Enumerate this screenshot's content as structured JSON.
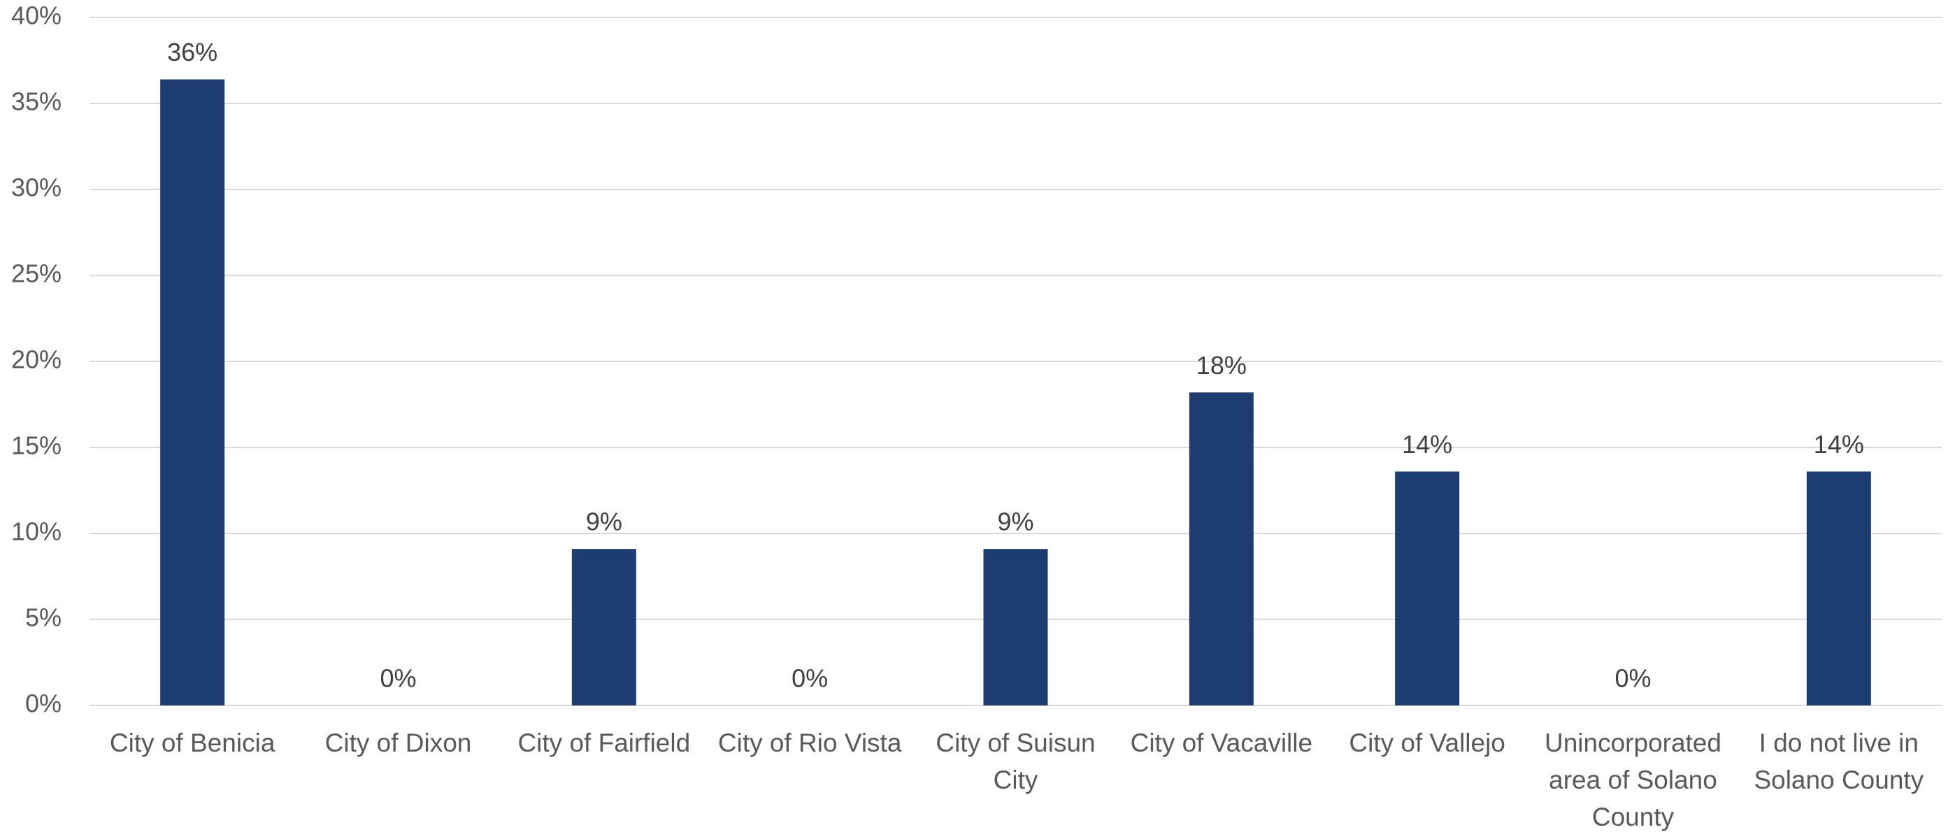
{
  "chart_data": {
    "type": "bar",
    "categories": [
      "City of Benicia",
      "City of Dixon",
      "City of Fairfield",
      "City of Rio Vista",
      "City of Suisun City",
      "City of Vacaville",
      "City of Vallejo",
      "Unincorporated area of Solano County",
      "I do not live in Solano County"
    ],
    "values": [
      36.4,
      0,
      9.1,
      0,
      9.1,
      18.2,
      13.6,
      0,
      13.6
    ],
    "value_labels": [
      "36%",
      "0%",
      "9%",
      "0%",
      "9%",
      "18%",
      "14%",
      "0%",
      "14%"
    ],
    "color": "#1d3d71",
    "ylim": [
      0,
      40
    ],
    "yticks": [
      {
        "value": 0,
        "label": "0%"
      },
      {
        "value": 5,
        "label": "5%"
      },
      {
        "value": 10,
        "label": "10%"
      },
      {
        "value": 15,
        "label": "15%"
      },
      {
        "value": 20,
        "label": "20%"
      },
      {
        "value": 25,
        "label": "25%"
      },
      {
        "value": 30,
        "label": "30%"
      },
      {
        "value": 35,
        "label": "35%"
      },
      {
        "value": 40,
        "label": "40%"
      }
    ],
    "grid": true
  }
}
